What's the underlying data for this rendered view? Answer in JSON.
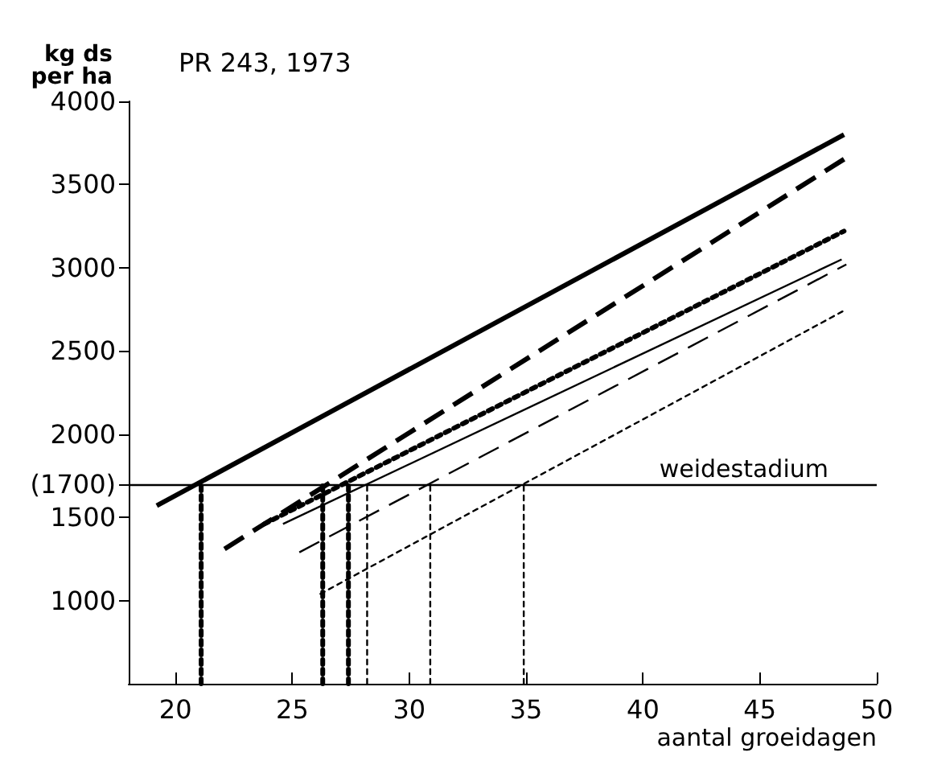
{
  "chart_data": {
    "type": "line",
    "title": "PR 243, 1973",
    "xlabel": "aantal groeidagen",
    "ylabel": "kg ds\nper ha",
    "xlim": [
      18,
      50
    ],
    "xticks": [
      20,
      25,
      30,
      35,
      40,
      45,
      50
    ],
    "ylim": [
      500,
      4000
    ],
    "yticks": [
      1000,
      1500,
      {
        "value": 1700,
        "label": "(1700)"
      },
      2000,
      2500,
      3000,
      3500,
      4000
    ],
    "grid": false,
    "marker": "none",
    "ref_lines": [
      {
        "axis": "y",
        "value": 1700,
        "label": "weidestadium",
        "color": "#000000",
        "line_style": "solid"
      }
    ],
    "series": [
      {
        "color": "#000000",
        "line_style": "solid",
        "x": [
          19.2,
          48.6
        ],
        "values": [
          1570,
          3800
        ]
      },
      {
        "color": "#000000",
        "line_style": "dashed",
        "x": [
          22.1,
          48.8
        ],
        "values": [
          1310,
          3670
        ]
      },
      {
        "color": "#000000",
        "line_style": "dotted",
        "x": [
          23.8,
          48.6
        ],
        "values": [
          1460,
          3220
        ]
      },
      {
        "color": "#000000",
        "line_style": "solid",
        "x": [
          24.6,
          48.5
        ],
        "values": [
          1460,
          3050
        ]
      },
      {
        "color": "#000000",
        "line_style": "dashed",
        "x": [
          25.3,
          48.7
        ],
        "values": [
          1290,
          3020
        ]
      },
      {
        "color": "#000000",
        "line_style": "dotted",
        "x": [
          26.2,
          48.7
        ],
        "values": [
          1040,
          2750
        ]
      },
      {
        "color": "#000000",
        "line_style": "dotted",
        "x": [
          21.1,
          21.1
        ],
        "values": [
          500,
          1700
        ]
      },
      {
        "color": "#000000",
        "line_style": "dotted",
        "x": [
          26.3,
          26.3
        ],
        "values": [
          500,
          1700
        ]
      },
      {
        "color": "#000000",
        "line_style": "dotted",
        "x": [
          27.4,
          27.4
        ],
        "values": [
          500,
          1700
        ]
      },
      {
        "color": "#000000",
        "line_style": "dotted",
        "x": [
          28.2,
          28.2
        ],
        "values": [
          500,
          1700
        ]
      },
      {
        "color": "#000000",
        "line_style": "dotted",
        "x": [
          30.9,
          30.9
        ],
        "values": [
          500,
          1700
        ]
      },
      {
        "color": "#000000",
        "line_style": "dotted",
        "x": [
          34.9,
          34.9
        ],
        "values": [
          500,
          1700
        ]
      }
    ]
  }
}
